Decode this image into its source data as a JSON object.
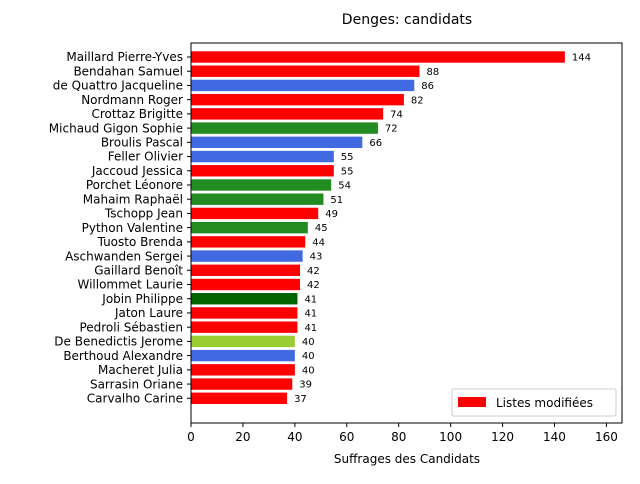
{
  "chart_data": {
    "type": "bar",
    "orientation": "horizontal",
    "title": "Denges: candidats",
    "xlabel": "Suffrages des Candidats",
    "ylabel": "",
    "xlim": [
      0,
      166
    ],
    "xticks": [
      0,
      20,
      40,
      60,
      80,
      100,
      120,
      140,
      160
    ],
    "grid": false,
    "legend": {
      "position": "lower-right",
      "entries": [
        {
          "label": "Listes modifiées",
          "color": "#ff0000"
        }
      ]
    },
    "categories": [
      "Maillard Pierre-Yves",
      "Bendahan Samuel",
      "de Quattro Jacqueline",
      "Nordmann Roger",
      "Crottaz Brigitte",
      "Michaud Gigon Sophie",
      "Broulis Pascal",
      "Feller Olivier",
      "Jaccoud Jessica",
      "Porchet Léonore",
      "Mahaim Raphaël",
      "Tschopp Jean",
      "Python Valentine",
      "Tuosto Brenda",
      "Aschwanden Sergei",
      "Gaillard Benoît",
      "Willommet Laurie",
      "Jobin Philippe",
      "Jaton Laure",
      "Pedroli Sébastien",
      "De Benedictis Jerome",
      "Berthoud Alexandre",
      "Macheret Julia",
      "Sarrasin Oriane",
      "Carvalho Carine"
    ],
    "values": [
      144,
      88,
      86,
      82,
      74,
      72,
      66,
      55,
      55,
      54,
      51,
      49,
      45,
      44,
      43,
      42,
      42,
      41,
      41,
      41,
      40,
      40,
      40,
      39,
      37
    ],
    "colors": [
      "#ff0000",
      "#ff0000",
      "#4169e1",
      "#ff0000",
      "#ff0000",
      "#228b22",
      "#4169e1",
      "#4169e1",
      "#ff0000",
      "#228b22",
      "#228b22",
      "#ff0000",
      "#228b22",
      "#ff0000",
      "#4169e1",
      "#ff0000",
      "#ff0000",
      "#006400",
      "#ff0000",
      "#ff0000",
      "#9acd32",
      "#4169e1",
      "#ff0000",
      "#ff0000",
      "#ff0000"
    ]
  }
}
